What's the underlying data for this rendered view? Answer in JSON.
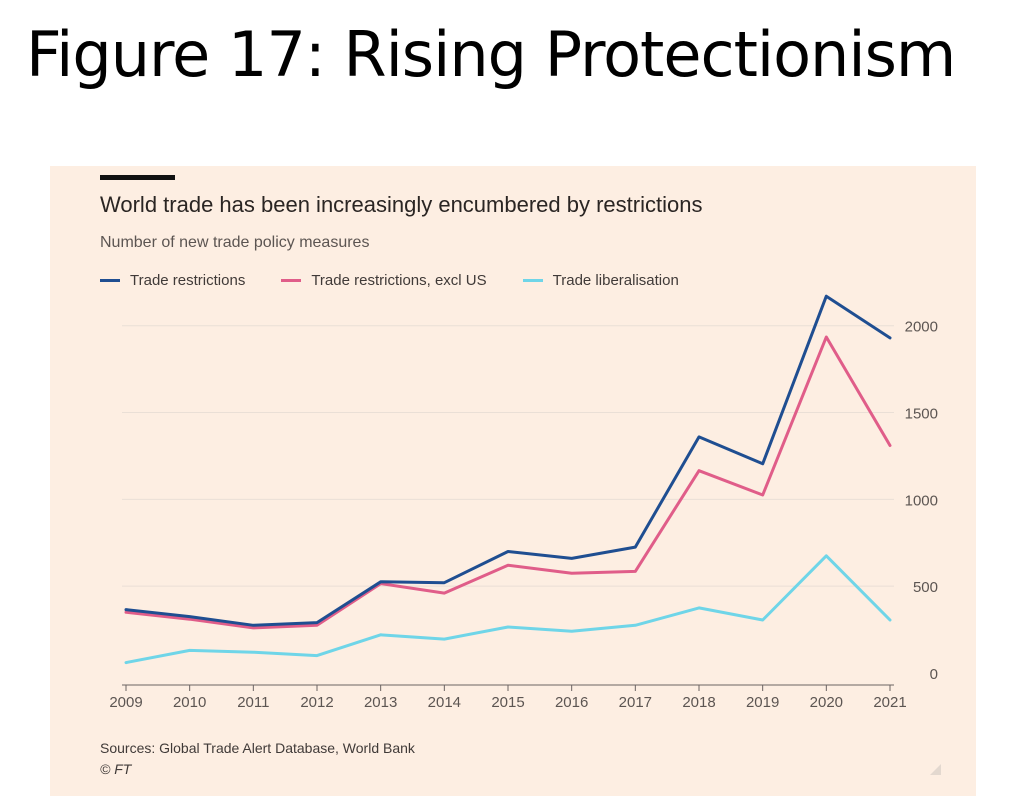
{
  "slide_title": "Figure 17: Rising Protectionism",
  "chart_data": {
    "type": "line",
    "title": "World trade has been increasingly encumbered by restrictions",
    "subtitle": "Number of new trade policy measures",
    "x": [
      "2009",
      "2010",
      "2011",
      "2012",
      "2013",
      "2014",
      "2015",
      "2016",
      "2017",
      "2018",
      "2019",
      "2020",
      "2021"
    ],
    "series": [
      {
        "name": "Trade restrictions",
        "color": "#1f4e91",
        "values": [
          365,
          325,
          275,
          290,
          525,
          520,
          700,
          660,
          725,
          1360,
          1205,
          2170,
          1930
        ]
      },
      {
        "name": "Trade restrictions, excl US",
        "color": "#e05d89",
        "values": [
          350,
          310,
          260,
          275,
          515,
          460,
          620,
          575,
          585,
          1165,
          1025,
          1935,
          1310
        ]
      },
      {
        "name": "Trade liberalisation",
        "color": "#6fd5e8",
        "values": [
          60,
          130,
          120,
          100,
          220,
          195,
          265,
          240,
          275,
          375,
          305,
          675,
          305
        ]
      }
    ],
    "yticks": [
      0,
      500,
      1000,
      1500,
      2000
    ],
    "ylim": [
      0,
      2200
    ],
    "y_axis_side": "right",
    "grid": true,
    "legend": "top-left"
  },
  "footer": {
    "sources": "Sources: Global Trade Alert Database, World Bank",
    "copyright": "© FT"
  }
}
